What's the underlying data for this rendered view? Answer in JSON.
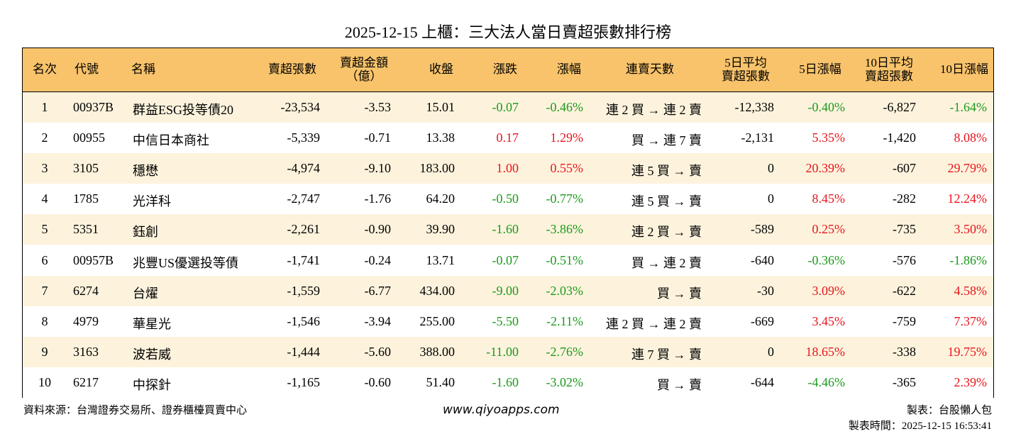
{
  "title": "2025-12-15 上櫃：三大法人當日賣超張數排行榜",
  "table": {
    "headers": [
      [
        "名次"
      ],
      [
        "代號"
      ],
      [
        "名稱"
      ],
      [
        "賣超張數"
      ],
      [
        "賣超金額",
        "（億）"
      ],
      [
        "收盤"
      ],
      [
        "漲跌"
      ],
      [
        "漲幅"
      ],
      [
        "連賣天數"
      ],
      [
        "5日平均",
        "賣超張數"
      ],
      [
        "5日漲幅"
      ],
      [
        "10日平均",
        "賣超張數"
      ],
      [
        "10日漲幅"
      ]
    ],
    "rows": [
      [
        "1",
        "00937B",
        "群益ESG投等債20",
        "-23,534",
        "-3.53",
        "15.01",
        "-0.07",
        "-0.46%",
        "連 2 買 → 連 2 賣",
        "-12,338",
        "-0.40%",
        "-6,827",
        "-1.64%"
      ],
      [
        "2",
        "00955",
        "中信日本商社",
        "-5,339",
        "-0.71",
        "13.38",
        "0.17",
        "1.29%",
        "買 → 連 7 賣",
        "-2,131",
        "5.35%",
        "-1,420",
        "8.08%"
      ],
      [
        "3",
        "3105",
        "穩懋",
        "-4,974",
        "-9.10",
        "183.00",
        "1.00",
        "0.55%",
        "連 5 買 → 賣",
        "0",
        "20.39%",
        "-607",
        "29.79%"
      ],
      [
        "4",
        "1785",
        "光洋科",
        "-2,747",
        "-1.76",
        "64.20",
        "-0.50",
        "-0.77%",
        "連 5 買 → 賣",
        "0",
        "8.45%",
        "-282",
        "12.24%"
      ],
      [
        "5",
        "5351",
        "鈺創",
        "-2,261",
        "-0.90",
        "39.90",
        "-1.60",
        "-3.86%",
        "連 2 買 → 賣",
        "-589",
        "0.25%",
        "-735",
        "3.50%"
      ],
      [
        "6",
        "00957B",
        "兆豐US優選投等債",
        "-1,741",
        "-0.24",
        "13.71",
        "-0.07",
        "-0.51%",
        "買 → 連 2 賣",
        "-640",
        "-0.36%",
        "-576",
        "-1.86%"
      ],
      [
        "7",
        "6274",
        "台燿",
        "-1,559",
        "-6.77",
        "434.00",
        "-9.00",
        "-2.03%",
        "買 → 賣",
        "-30",
        "3.09%",
        "-622",
        "4.58%"
      ],
      [
        "8",
        "4979",
        "華星光",
        "-1,546",
        "-3.94",
        "255.00",
        "-5.50",
        "-2.11%",
        "連 2 買 → 連 2 賣",
        "-669",
        "3.45%",
        "-759",
        "7.37%"
      ],
      [
        "9",
        "3163",
        "波若威",
        "-1,444",
        "-5.60",
        "388.00",
        "-11.00",
        "-2.76%",
        "連 7 買 → 賣",
        "0",
        "18.65%",
        "-338",
        "19.75%"
      ],
      [
        "10",
        "6217",
        "中探針",
        "-1,165",
        "-0.60",
        "51.40",
        "-1.60",
        "-3.02%",
        "買 → 賣",
        "-644",
        "-4.46%",
        "-365",
        "2.39%"
      ]
    ]
  },
  "footer": {
    "source": "資料來源：台灣證券交易所、證券櫃檯買賣中心",
    "website": "www.qiyoapps.com",
    "maker": "製表：台股懶人包",
    "time": "製表時間：2025-12-15 16:53:41"
  }
}
